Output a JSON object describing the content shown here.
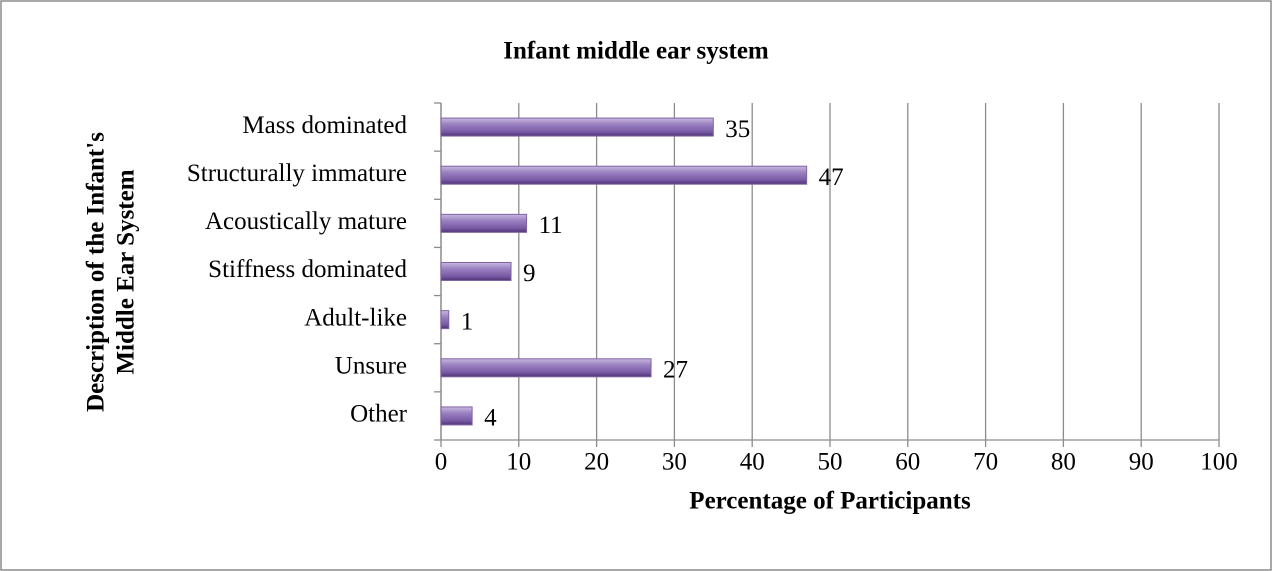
{
  "chart_data": {
    "type": "bar",
    "orientation": "horizontal",
    "title": "Infant middle ear system",
    "x_label": "Percentage of Participants",
    "y_label": [
      "Description of the Infant's",
      "Middle Ear System"
    ],
    "categories": [
      "Mass dominated",
      "Structurally immature",
      "Acoustically mature",
      "Stiffness dominated",
      "Adult-like",
      "Unsure",
      "Other"
    ],
    "values": [
      35,
      47,
      11,
      9,
      1,
      27,
      4
    ],
    "color": "#8064a2",
    "xlim": [
      0,
      100
    ],
    "xticks": [
      0,
      10,
      20,
      30,
      40,
      50,
      60,
      70,
      80,
      90,
      100
    ],
    "grid": true
  }
}
